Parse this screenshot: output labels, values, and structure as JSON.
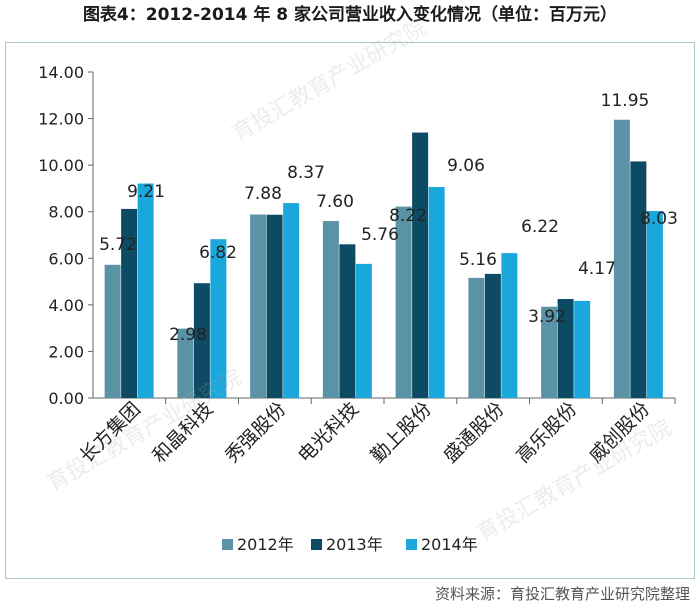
{
  "title": "图表4：2012-2014 年 8 家公司营业收入变化情况（单位：百万元）",
  "source": "资料来源：育投汇教育产业研究院整理",
  "watermark": "育投汇教育产业研究院",
  "colors": {
    "2012": "#5b93a6",
    "2013": "#0d4a63",
    "2014": "#1aa8dc",
    "border": "#a8c6cc",
    "axis": "#666666"
  },
  "chart_data": {
    "type": "bar",
    "title": "图表4：2012-2014 年 8 家公司营业收入变化情况（单位：百万元）",
    "xlabel": "",
    "ylabel": "",
    "ylim": [
      0,
      14
    ],
    "yticks": [
      "0.00",
      "2.00",
      "4.00",
      "6.00",
      "8.00",
      "10.00",
      "12.00",
      "14.00"
    ],
    "grid": false,
    "legend_position": "bottom",
    "categories": [
      "长方集团",
      "和晶科技",
      "秀强股份",
      "电光科技",
      "勤上股份",
      "盛通股份",
      "高乐股份",
      "威创股份"
    ],
    "series": [
      {
        "name": "2012年",
        "values": [
          5.72,
          2.98,
          7.88,
          7.6,
          8.22,
          5.16,
          3.92,
          11.95
        ]
      },
      {
        "name": "2013年",
        "values": [
          8.12,
          4.93,
          7.87,
          6.6,
          11.4,
          5.33,
          4.25,
          10.16
        ]
      },
      {
        "name": "2014年",
        "values": [
          9.21,
          6.82,
          8.37,
          5.76,
          9.06,
          6.22,
          4.17,
          8.03
        ]
      }
    ],
    "data_labels": [
      {
        "category": "长方集团",
        "series": "2012年",
        "text": "5.72"
      },
      {
        "category": "长方集团",
        "series": "2014年",
        "text": "9.21"
      },
      {
        "category": "和晶科技",
        "series": "2012年",
        "text": "2.98"
      },
      {
        "category": "和晶科技",
        "series": "2014年",
        "text": "6.82"
      },
      {
        "category": "秀强股份",
        "series": "2012年",
        "text": "7.88"
      },
      {
        "category": "秀强股份",
        "series": "2014年",
        "text": "8.37"
      },
      {
        "category": "电光科技",
        "series": "2012年",
        "text": "7.60"
      },
      {
        "category": "电光科技",
        "series": "2014年",
        "text": "5.76"
      },
      {
        "category": "勤上股份",
        "series": "2012年",
        "text": "8.22"
      },
      {
        "category": "勤上股份",
        "series": "2014年",
        "text": "9.06"
      },
      {
        "category": "盛通股份",
        "series": "2012年",
        "text": "5.16"
      },
      {
        "category": "盛通股份",
        "series": "2014年",
        "text": "6.22"
      },
      {
        "category": "高乐股份",
        "series": "2012年",
        "text": "3.92"
      },
      {
        "category": "高乐股份",
        "series": "2014年",
        "text": "4.17"
      },
      {
        "category": "威创股份",
        "series": "2012年",
        "text": "11.95"
      },
      {
        "category": "威创股份",
        "series": "2014年",
        "text": "8.03"
      }
    ]
  }
}
